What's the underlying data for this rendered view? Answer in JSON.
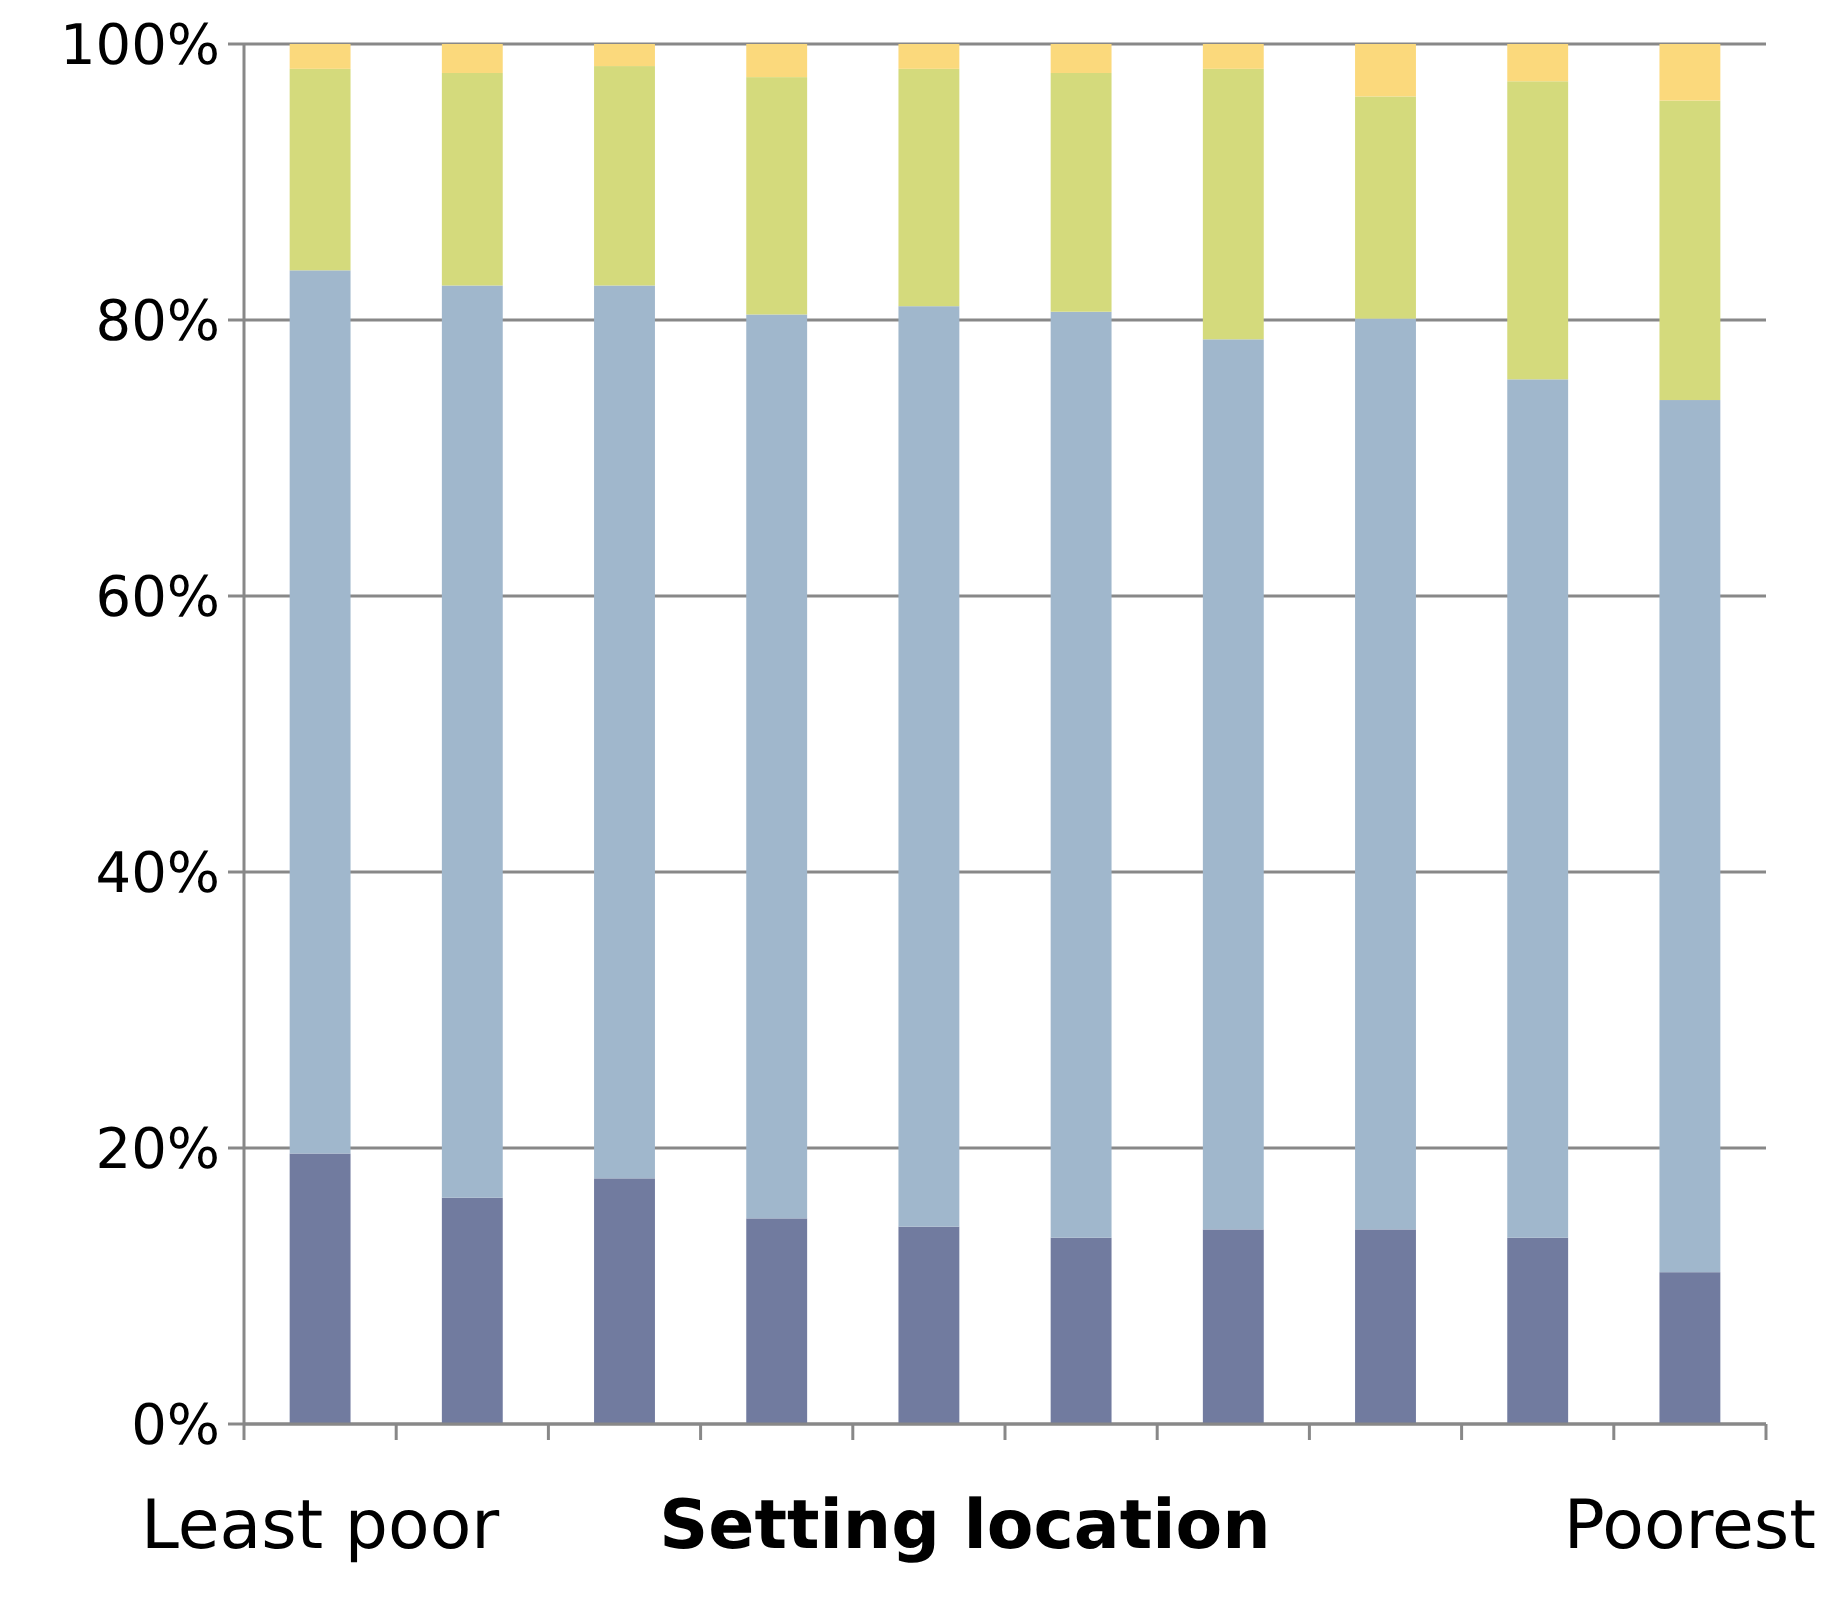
{
  "chart_data": {
    "type": "bar",
    "stacked": true,
    "xlabel": "Setting location",
    "categories": [
      "Least poor",
      null,
      null,
      null,
      null,
      null,
      null,
      null,
      null,
      "Poorest"
    ],
    "series": [
      {
        "color": "#717b9f",
        "values": [
          19.6,
          16.4,
          17.8,
          14.9,
          14.3,
          13.5,
          14.1,
          14.1,
          13.5,
          11.0
        ]
      },
      {
        "color": "#a0b7cc",
        "values": [
          64.0,
          66.1,
          64.7,
          65.5,
          66.7,
          67.1,
          64.5,
          66.0,
          62.2,
          63.2
        ]
      },
      {
        "color": "#d4da7c",
        "values": [
          14.6,
          15.4,
          15.9,
          17.2,
          17.2,
          17.3,
          19.6,
          16.1,
          21.6,
          21.7
        ]
      },
      {
        "color": "#fbd97c",
        "values": [
          1.8,
          2.1,
          1.6,
          2.4,
          1.8,
          2.1,
          1.8,
          3.8,
          2.7,
          4.1
        ]
      }
    ],
    "ylim": [
      0,
      100
    ],
    "yticks": [
      {
        "value": 0,
        "label": "0%"
      },
      {
        "value": 20,
        "label": "20%"
      },
      {
        "value": 40,
        "label": "40%"
      },
      {
        "value": 60,
        "label": "60%"
      },
      {
        "value": 80,
        "label": "80%"
      },
      {
        "value": 100,
        "label": "100%"
      }
    ],
    "grid": "y"
  }
}
